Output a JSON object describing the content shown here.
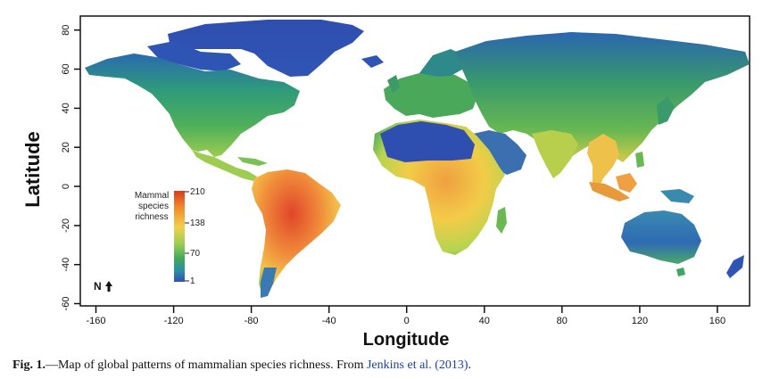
{
  "map": {
    "y_axis_label": "Latitude",
    "x_axis_label": "Longitude",
    "x_ticks": [
      "-160",
      "-120",
      "-80",
      "-40",
      "0",
      "40",
      "80",
      "120",
      "160"
    ],
    "y_ticks": [
      "80",
      "60",
      "40",
      "20",
      "0",
      "-20",
      "-40",
      "-60"
    ],
    "x_range": [
      -180,
      180
    ],
    "y_range": [
      -60,
      85
    ],
    "north_label": "N",
    "north_icon": "arrow-up-icon"
  },
  "legend": {
    "title_line1": "Mammal",
    "title_line2": "species",
    "title_line3": "richness",
    "ticks": [
      "210",
      "138",
      "70",
      "1"
    ],
    "colors": [
      "#d93a1f",
      "#f08a2a",
      "#f2d04a",
      "#9ccf50",
      "#3da860",
      "#2a8fa6",
      "#2f4fb0"
    ]
  },
  "caption": {
    "label": "Fig. 1.",
    "text": "—Map of global patterns of mammalian species richness. From ",
    "link": "Jenkins et al. (2013)",
    "end": "."
  }
}
